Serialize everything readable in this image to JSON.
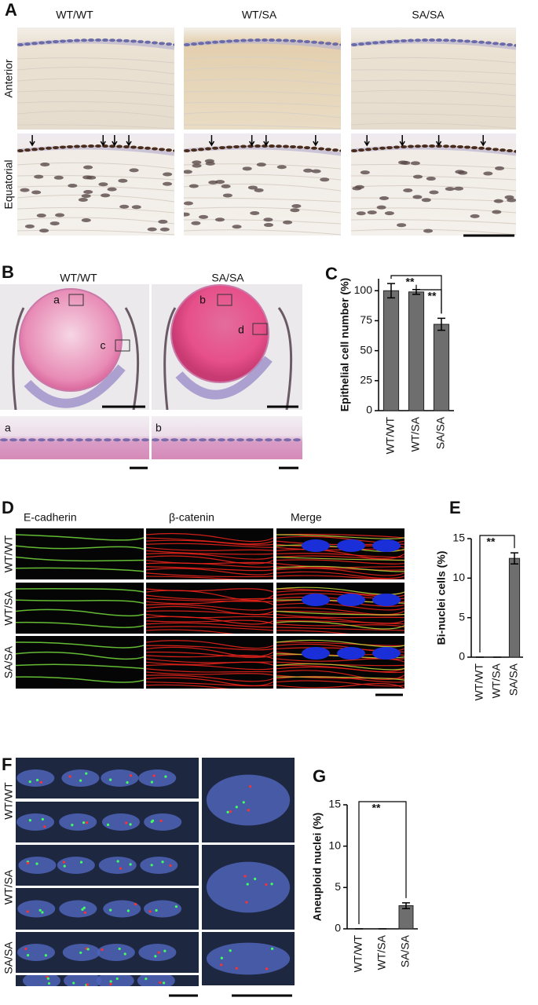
{
  "panel_a": {
    "label": "A",
    "columns": [
      "WT/WT",
      "WT/SA",
      "SA/SA"
    ],
    "rows": [
      "Anterior",
      "Equatorial"
    ]
  },
  "panel_b": {
    "label": "B",
    "columns": [
      "WT/WT",
      "SA/SA"
    ],
    "regions": [
      "a",
      "c",
      "b",
      "d"
    ],
    "zooms": [
      "a",
      "b"
    ]
  },
  "panel_d": {
    "label": "D",
    "columns": [
      "E-cadherin",
      "β-catenin",
      "Merge"
    ],
    "rows": [
      "WT/WT",
      "WT/SA",
      "SA/SA"
    ]
  },
  "panel_f": {
    "label": "F",
    "rows": [
      "WT/WT",
      "WT/SA",
      "SA/SA"
    ]
  },
  "chart_data": [
    {
      "type": "bar",
      "panel_label": "C",
      "ylabel": "Epithelial cell number (%)",
      "categories": [
        "WT/WT",
        "WT/SA",
        "SA/SA"
      ],
      "values": [
        100,
        99,
        72
      ],
      "errors": [
        6,
        2,
        5
      ],
      "color": "#6e6e6e",
      "ylim": [
        0,
        110
      ],
      "yticks": [
        0,
        25,
        50,
        75,
        100
      ],
      "significance": [
        "**",
        "**"
      ]
    },
    {
      "type": "bar",
      "panel_label": "E",
      "ylabel": "Bi-nuclei cells (%)",
      "categories": [
        "WT/WT",
        "WT/SA",
        "SA/SA"
      ],
      "values": [
        0,
        0,
        12.5
      ],
      "errors": [
        0,
        0,
        0.7
      ],
      "color": "#6e6e6e",
      "ylim": [
        0,
        15
      ],
      "yticks": [
        0,
        5,
        10,
        15
      ],
      "significance": [
        "**"
      ]
    },
    {
      "type": "bar",
      "panel_label": "G",
      "ylabel": "Aneuploid nuclei (%)",
      "categories": [
        "WT/WT",
        "WT/SA",
        "SA/SA"
      ],
      "values": [
        0,
        0,
        2.8
      ],
      "errors": [
        0,
        0,
        0.35
      ],
      "color": "#6e6e6e",
      "ylim": [
        0,
        15
      ],
      "yticks": [
        0,
        5,
        10,
        15
      ],
      "significance": [
        "**"
      ]
    }
  ]
}
